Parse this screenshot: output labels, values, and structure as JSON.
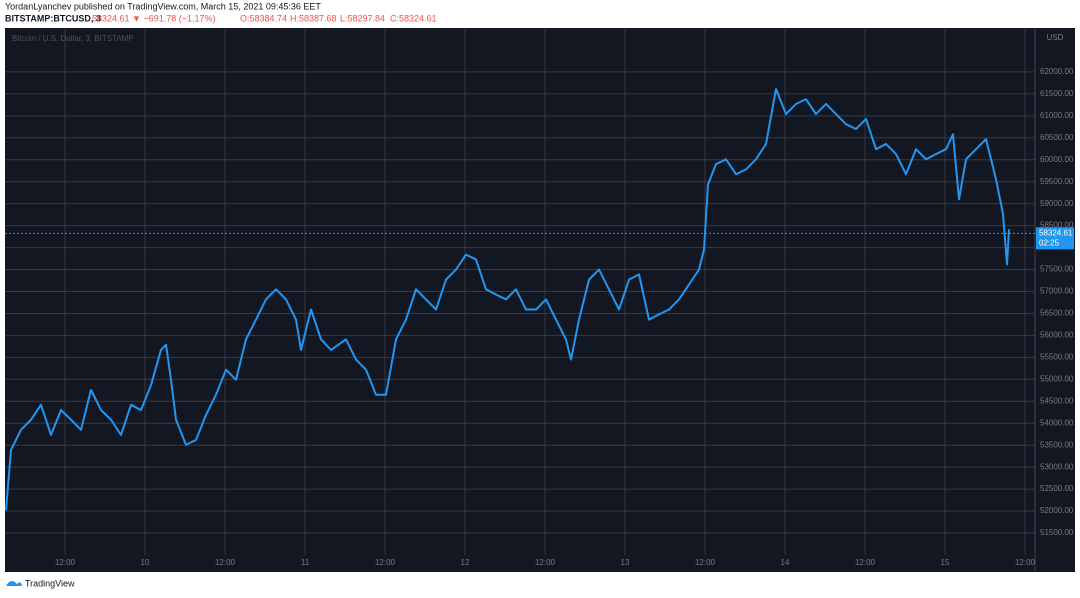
{
  "header": {
    "publisher": "YordanLyanchev published on TradingView.com, March 15, 2021 09:45:36 EET",
    "symbol": "BITSTAMP:BTCUSD, 3",
    "change": "58324.61 ▼ −691.78 (−1.17%)",
    "ohlc": [
      "O:58384.74",
      "H:58387.68",
      "L:58297.84",
      "C:58324.61"
    ]
  },
  "footer": {
    "brand": "TradingView"
  },
  "chart_data": {
    "type": "line",
    "watermark": "Bitcoin / U.S. Dollar, 3, BITSTAMP",
    "currency": "USD",
    "color": "#2196f3",
    "grid": true,
    "last_price": 58324.61,
    "countdown": "02:25",
    "xlim": [
      3,
      157.5
    ],
    "ylim": [
      51000,
      63000
    ],
    "xticks": [
      {
        "value": 12,
        "label": "12:00"
      },
      {
        "value": 24,
        "label": "10"
      },
      {
        "value": 36,
        "label": "12:00"
      },
      {
        "value": 48,
        "label": "11"
      },
      {
        "value": 60,
        "label": "12:00"
      },
      {
        "value": 72,
        "label": "12"
      },
      {
        "value": 84,
        "label": "12:00"
      },
      {
        "value": 96,
        "label": "13"
      },
      {
        "value": 108,
        "label": "12:00"
      },
      {
        "value": 120,
        "label": "14"
      },
      {
        "value": 132,
        "label": "12:00"
      },
      {
        "value": 144,
        "label": "15"
      },
      {
        "value": 156,
        "label": "12:00"
      }
    ],
    "yticks": [
      {
        "value": 51500,
        "label": "51500.00"
      },
      {
        "value": 52000,
        "label": "52000.00"
      },
      {
        "value": 52500,
        "label": "52500.00"
      },
      {
        "value": 53000,
        "label": "53000.00"
      },
      {
        "value": 53500,
        "label": "53500.00"
      },
      {
        "value": 54000,
        "label": "54000.00"
      },
      {
        "value": 54500,
        "label": "54500.00"
      },
      {
        "value": 55000,
        "label": "55000.00"
      },
      {
        "value": 55500,
        "label": "55500.00"
      },
      {
        "value": 56000,
        "label": "56000.00"
      },
      {
        "value": 56500,
        "label": "56500.00"
      },
      {
        "value": 57000,
        "label": "57000.00"
      },
      {
        "value": 57500,
        "label": "57500.00"
      },
      {
        "value": 58000,
        "label": "58000.00"
      },
      {
        "value": 58500,
        "label": "58500.00"
      },
      {
        "value": 59000,
        "label": "59000.00"
      },
      {
        "value": 59500,
        "label": "59500.00"
      },
      {
        "value": 60000,
        "label": "60000.00"
      },
      {
        "value": 60500,
        "label": "60500.00"
      },
      {
        "value": 61000,
        "label": "61000.00"
      },
      {
        "value": 61500,
        "label": "61500.00"
      },
      {
        "value": 62000,
        "label": "62000.00"
      }
    ],
    "x": [
      3.15,
      3.9,
      5.4,
      6.9,
      8.4,
      9.9,
      11.4,
      12.9,
      14.4,
      15.9,
      17.4,
      18.9,
      20.4,
      21.9,
      23.4,
      24.9,
      26.4,
      27.15,
      27.9,
      28.65,
      30.15,
      31.65,
      33.15,
      34.65,
      36.15,
      37.65,
      39.15,
      40.65,
      42.15,
      43.65,
      45.15,
      46.65,
      47.4,
      48.9,
      50.4,
      51.9,
      54.15,
      55.65,
      57.15,
      58.65,
      60.15,
      61.65,
      63.15,
      64.65,
      66.15,
      67.65,
      69.15,
      70.65,
      72.15,
      73.65,
      75.15,
      76.65,
      78.15,
      79.65,
      81.15,
      82.65,
      84.15,
      85.65,
      87.15,
      87.9,
      89.1,
      90.6,
      92.1,
      93.6,
      95.1,
      96.6,
      98.1,
      99.6,
      101.1,
      102.6,
      104.1,
      105.6,
      107.1,
      107.85,
      108.45,
      109.65,
      111.15,
      112.65,
      114.15,
      115.65,
      117.15,
      118.65,
      120.15,
      121.65,
      123.15,
      124.65,
      126.15,
      127.65,
      129.15,
      130.65,
      132.15,
      133.65,
      135.15,
      136.65,
      138.15,
      139.65,
      141.15,
      142.65,
      144.15,
      145.2,
      146.1,
      147.15,
      148.65,
      150.15,
      151.65,
      152.7,
      153.3,
      153.6
    ],
    "series": [
      {
        "name": "BTCUSD",
        "color": "#2196f3",
        "values": [
          52023,
          53393,
          53850,
          54080,
          54420,
          53735,
          54300,
          54080,
          53850,
          54760,
          54300,
          54080,
          53735,
          54420,
          54300,
          54870,
          55670,
          55790,
          54990,
          54080,
          53510,
          53620,
          54190,
          54650,
          55220,
          54990,
          55910,
          56360,
          56820,
          57050,
          56820,
          56360,
          55670,
          56590,
          55910,
          55670,
          55910,
          55450,
          55220,
          54650,
          54650,
          55910,
          56360,
          57050,
          56820,
          56590,
          57270,
          57500,
          57840,
          57730,
          57050,
          56930,
          56820,
          57050,
          56590,
          56590,
          56820,
          56360,
          55910,
          55450,
          56360,
          57270,
          57500,
          57050,
          56590,
          57270,
          57390,
          56360,
          56480,
          56590,
          56820,
          57160,
          57500,
          57960,
          59440,
          59900,
          60010,
          59670,
          59780,
          60010,
          60360,
          61610,
          61040,
          61270,
          61380,
          61040,
          61270,
          61040,
          60810,
          60700,
          60930,
          60240,
          60360,
          60130,
          59670,
          60240,
          60010,
          60130,
          60240,
          60580,
          59100,
          60010,
          60240,
          60470,
          59560,
          58760,
          57620,
          58420
        ]
      }
    ]
  }
}
